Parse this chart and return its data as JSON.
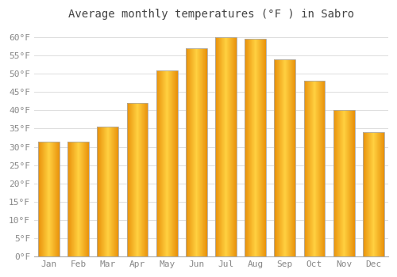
{
  "title": "Average monthly temperatures (°F ) in Sabro",
  "months": [
    "Jan",
    "Feb",
    "Mar",
    "Apr",
    "May",
    "Jun",
    "Jul",
    "Aug",
    "Sep",
    "Oct",
    "Nov",
    "Dec"
  ],
  "values": [
    31.5,
    31.5,
    35.5,
    42.0,
    51.0,
    57.0,
    60.0,
    59.5,
    54.0,
    48.0,
    40.0,
    34.0
  ],
  "bar_color_edge": "#E8900A",
  "bar_color_center": "#FFD040",
  "bar_outline": "#AAAAAA",
  "background_color": "#FFFFFF",
  "grid_color": "#DDDDDD",
  "ylim": [
    0,
    63
  ],
  "yticks": [
    0,
    5,
    10,
    15,
    20,
    25,
    30,
    35,
    40,
    45,
    50,
    55,
    60
  ],
  "ytick_labels": [
    "0°F",
    "5°F",
    "10°F",
    "15°F",
    "20°F",
    "25°F",
    "30°F",
    "35°F",
    "40°F",
    "45°F",
    "50°F",
    "55°F",
    "60°F"
  ],
  "title_fontsize": 10,
  "tick_fontsize": 8,
  "font_family": "monospace"
}
